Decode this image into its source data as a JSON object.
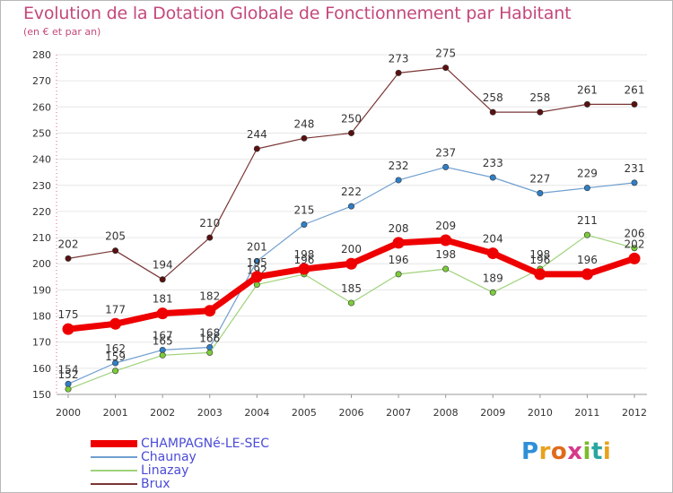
{
  "title": "Evolution de la Dotation Globale de Fonctionnement par Habitant",
  "subtitle": "(en € et par an)",
  "logo": {
    "letters": [
      "P",
      "r",
      "o",
      "x",
      "i",
      "t",
      "i"
    ],
    "colors": [
      "#2f8fd8",
      "#e8a21c",
      "#e06b1a",
      "#d63a8a",
      "#7bbb2a",
      "#2aa6a0",
      "#e8a21c"
    ]
  },
  "chart_data": {
    "type": "line",
    "title": "Evolution de la Dotation Globale de Fonctionnement par Habitant",
    "subtitle": "(en € et par an)",
    "xlabel": "",
    "ylabel": "",
    "x": [
      "2000",
      "2001",
      "2002",
      "2003",
      "2004",
      "2005",
      "2006",
      "2007",
      "2008",
      "2009",
      "2010",
      "2011",
      "2012"
    ],
    "ylim": [
      150,
      280
    ],
    "yticks": [
      150,
      160,
      170,
      180,
      190,
      200,
      210,
      220,
      230,
      240,
      250,
      260,
      270,
      280
    ],
    "grid": "horizontal",
    "legend": "bottom-left",
    "series": [
      {
        "name": "Brux",
        "color": "#7a3535",
        "marker": "#5a1010",
        "width": 1.2,
        "values": [
          202,
          205,
          194,
          210,
          244,
          248,
          250,
          273,
          275,
          258,
          258,
          261,
          261
        ],
        "labels": [
          "202",
          "205",
          "194",
          "210",
          "244",
          "248",
          "250",
          "273",
          "275",
          "258",
          "258",
          "261",
          "261"
        ]
      },
      {
        "name": "Chaunay",
        "color": "#6f9fd0",
        "marker": "#2f7fc8",
        "width": 1.2,
        "values": [
          154,
          162,
          167,
          168,
          201,
          215,
          222,
          232,
          237,
          233,
          227,
          229,
          231
        ],
        "labels": [
          "154",
          "162",
          "167",
          "168",
          "201",
          "215",
          "222",
          "232",
          "237",
          "233",
          "227",
          "229",
          "231"
        ]
      },
      {
        "name": "Linazay",
        "color": "#9fd27a",
        "marker": "#7ccc3a",
        "width": 1.2,
        "values": [
          152,
          159,
          165,
          166,
          192,
          196,
          185,
          196,
          198,
          189,
          198,
          211,
          206
        ],
        "labels": [
          "152",
          "159",
          "165",
          "166",
          "192",
          "196",
          "185",
          "196",
          "198",
          "189",
          "198",
          "211",
          "206"
        ]
      },
      {
        "name": "CHAMPAGNé-LE-SEC",
        "color": "#ee0000",
        "marker": "#ee0000",
        "width": 7,
        "values": [
          175,
          177,
          181,
          182,
          195,
          198,
          200,
          208,
          209,
          204,
          196,
          196,
          202
        ],
        "labels": [
          "175",
          "177",
          "181",
          "182",
          "195",
          "198",
          "200",
          "208",
          "209",
          "204",
          "196",
          "196",
          "202"
        ]
      }
    ],
    "legend_order": [
      "CHAMPAGNé-LE-SEC",
      "Chaunay",
      "Linazay",
      "Brux"
    ]
  }
}
